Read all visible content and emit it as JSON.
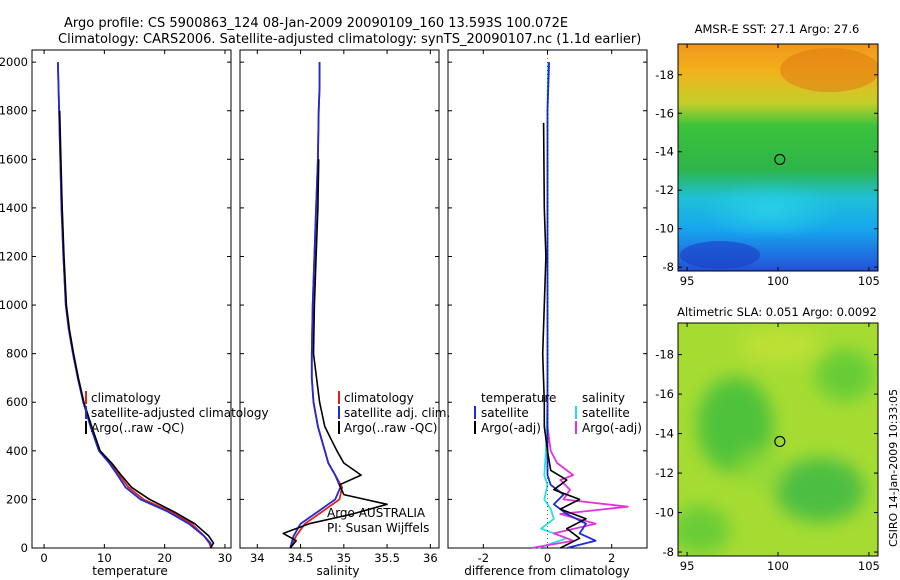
{
  "header": {
    "line1": "Argo profile: CS 5900863_124 08-Jan-2009 20090109_160 13.593S 100.072E",
    "line2": "Climatology: CARS2006. Satellite-adjusted climatology: synTS_20090107.nc (1.1d earlier)"
  },
  "side_label": "CSIRO 14-Jan-2009 10:33:05",
  "colors": {
    "red": "#e8201a",
    "blue": "#1f2bd6",
    "black": "#000000",
    "cyan": "#26e0e6",
    "magenta": "#e233dc"
  },
  "chart_data": [
    {
      "type": "line",
      "xlabel": "temperature",
      "xlim": [
        -2,
        31
      ],
      "ylim": [
        2050,
        0
      ],
      "xticks": [
        0,
        10,
        20,
        30
      ],
      "yticks": [
        0,
        200,
        400,
        600,
        800,
        1000,
        1200,
        1400,
        1600,
        1800,
        2000
      ],
      "legend": [
        "climatology",
        "satellite-adjusted climatology",
        "Argo(..raw -QC)"
      ],
      "series": [
        {
          "color": "red",
          "x": [
            27.7,
            27.4,
            26.5,
            24.5,
            21,
            16.5,
            14,
            12.5,
            11,
            9.2,
            7.8,
            6.5,
            5.6,
            4.8,
            4.1,
            3.6,
            3.2,
            2.9,
            2.7,
            2.5,
            2.4,
            2.3
          ],
          "y": [
            0,
            20,
            50,
            100,
            150,
            200,
            250,
            300,
            350,
            400,
            500,
            600,
            700,
            800,
            900,
            1000,
            1200,
            1400,
            1600,
            1800,
            1900,
            2000
          ]
        },
        {
          "color": "blue",
          "x": [
            27.8,
            27.6,
            26.5,
            24,
            20.5,
            16,
            13.5,
            12.2,
            10.8,
            9.1,
            7.7,
            6.5,
            5.6,
            4.8,
            4.1,
            3.6,
            3.2,
            2.9,
            2.7,
            2.5,
            2.4,
            2.3
          ],
          "y": [
            0,
            20,
            50,
            100,
            150,
            200,
            250,
            300,
            350,
            400,
            500,
            600,
            700,
            800,
            900,
            1000,
            1200,
            1400,
            1600,
            1800,
            1900,
            2000
          ]
        },
        {
          "color": "black",
          "x": [
            27.6,
            28.1,
            27.3,
            25,
            21.5,
            17.5,
            14.5,
            12.8,
            11.2,
            9.3,
            7.9,
            6.6,
            5.7,
            4.9,
            4.2,
            3.7,
            3.3,
            3.0,
            2.8,
            2.6
          ],
          "y": [
            0,
            20,
            50,
            100,
            150,
            200,
            250,
            300,
            350,
            400,
            500,
            600,
            700,
            800,
            900,
            1000,
            1200,
            1400,
            1600,
            1800
          ]
        }
      ]
    },
    {
      "type": "line",
      "xlabel": "salinity",
      "xlim": [
        33.8,
        36.1
      ],
      "ylim": [
        2050,
        0
      ],
      "xticks": [
        34,
        34.5,
        35,
        35.5,
        36
      ],
      "legend": [
        "climatology",
        "satellite adj. clim.",
        "Argo(..raw -QC)"
      ],
      "annotation": [
        "Argo AUSTRALIA",
        "PI: Susan Wijffels"
      ],
      "series": [
        {
          "color": "red",
          "x": [
            34.38,
            34.45,
            34.55,
            34.75,
            34.95,
            34.98,
            34.9,
            34.82,
            34.78,
            34.7,
            34.65,
            34.63,
            34.63,
            34.64,
            34.66,
            34.68,
            34.7,
            34.71,
            34.72,
            34.72
          ],
          "y": [
            0,
            50,
            100,
            150,
            200,
            250,
            300,
            350,
            400,
            500,
            600,
            700,
            800,
            1000,
            1200,
            1400,
            1600,
            1800,
            1900,
            2000
          ]
        },
        {
          "color": "blue",
          "x": [
            34.38,
            34.42,
            34.5,
            34.7,
            34.9,
            34.96,
            34.9,
            34.82,
            34.78,
            34.7,
            34.65,
            34.63,
            34.63,
            34.64,
            34.66,
            34.68,
            34.7,
            34.71,
            34.72,
            34.72
          ],
          "y": [
            0,
            50,
            100,
            150,
            200,
            250,
            300,
            350,
            400,
            500,
            600,
            700,
            800,
            1000,
            1200,
            1400,
            1600,
            1800,
            1900,
            2000
          ]
        },
        {
          "color": "black",
          "x": [
            34.38,
            34.45,
            34.3,
            34.6,
            35.1,
            35.5,
            35.0,
            34.95,
            35.2,
            35.0,
            34.92,
            34.85,
            34.78,
            34.72,
            34.65,
            34.66,
            34.68,
            34.7,
            34.71
          ],
          "y": [
            0,
            30,
            60,
            100,
            140,
            180,
            220,
            260,
            300,
            350,
            400,
            450,
            500,
            600,
            800,
            1000,
            1200,
            1400,
            1600
          ]
        }
      ]
    },
    {
      "type": "line",
      "xlabel": "difference from climatology",
      "xlim": [
        -3.1,
        3.1
      ],
      "ylim": [
        2050,
        0
      ],
      "xticks": [
        -2,
        0,
        2
      ],
      "legend_temperature": {
        "title": "temperature",
        "items": [
          "satellite",
          "Argo(-adj)"
        ]
      },
      "legend_salinity": {
        "title": "salinity",
        "items": [
          "satellite",
          "Argo(-adj)"
        ]
      },
      "series": [
        {
          "color": "cyan",
          "x": [
            -0.3,
            0.6,
            -0.2,
            0.2,
            0.1,
            -0.1,
            0.0,
            -0.1,
            -0.05,
            0.0,
            0.0,
            0.0,
            0.0,
            0.0,
            0.0,
            0.02
          ],
          "y": [
            0,
            40,
            80,
            120,
            160,
            200,
            260,
            300,
            400,
            600,
            800,
            1000,
            1200,
            1600,
            1800,
            2000
          ]
        },
        {
          "color": "magenta",
          "x": [
            -0.5,
            0.8,
            0.2,
            1.5,
            0.4,
            2.5,
            0.5,
            0.7,
            0.4,
            0.8,
            0.3,
            0.1,
            0.0,
            0.0
          ],
          "y": [
            0,
            30,
            60,
            100,
            140,
            170,
            200,
            240,
            280,
            300,
            350,
            400,
            500,
            600
          ]
        },
        {
          "color": "blue",
          "x": [
            0.6,
            1.5,
            1.0,
            1.2,
            0.6,
            0.2,
            0.5,
            0.1,
            0.0,
            0.0,
            0.0,
            0.0,
            0.0,
            0.0,
            0.0,
            0.05
          ],
          "y": [
            0,
            30,
            60,
            100,
            140,
            180,
            220,
            260,
            300,
            400,
            600,
            800,
            1000,
            1400,
            1800,
            2000
          ]
        },
        {
          "color": "black",
          "x": [
            0.4,
            1.0,
            0.6,
            1.2,
            0.4,
            1.0,
            0.2,
            0.6,
            0.1,
            0.0,
            -0.1,
            -0.1,
            -0.15,
            -0.1,
            -0.05,
            -0.1,
            -0.12
          ],
          "y": [
            0,
            40,
            80,
            120,
            160,
            200,
            240,
            280,
            320,
            400,
            500,
            600,
            800,
            1000,
            1200,
            1400,
            1750
          ]
        }
      ]
    },
    {
      "type": "heatmap",
      "title": "AMSR-E SST: 27.1 Argo: 27.6",
      "xlim": [
        94.5,
        105.5
      ],
      "ylim": [
        -19.6,
        -7.8
      ],
      "xticks": [
        95,
        100,
        105
      ],
      "yticks": [
        -8,
        -10,
        -12,
        -14,
        -16,
        -18
      ],
      "argo_marker": [
        100.1,
        -13.6
      ]
    },
    {
      "type": "heatmap",
      "title": "Altimetric SLA: 0.051 Argo: 0.0092",
      "xlim": [
        94.5,
        105.5
      ],
      "ylim": [
        -19.6,
        -7.8
      ],
      "xticks": [
        95,
        100,
        105
      ],
      "yticks": [
        -8,
        -10,
        -12,
        -14,
        -16,
        -18
      ],
      "argo_marker": [
        100.1,
        -13.6
      ]
    }
  ]
}
